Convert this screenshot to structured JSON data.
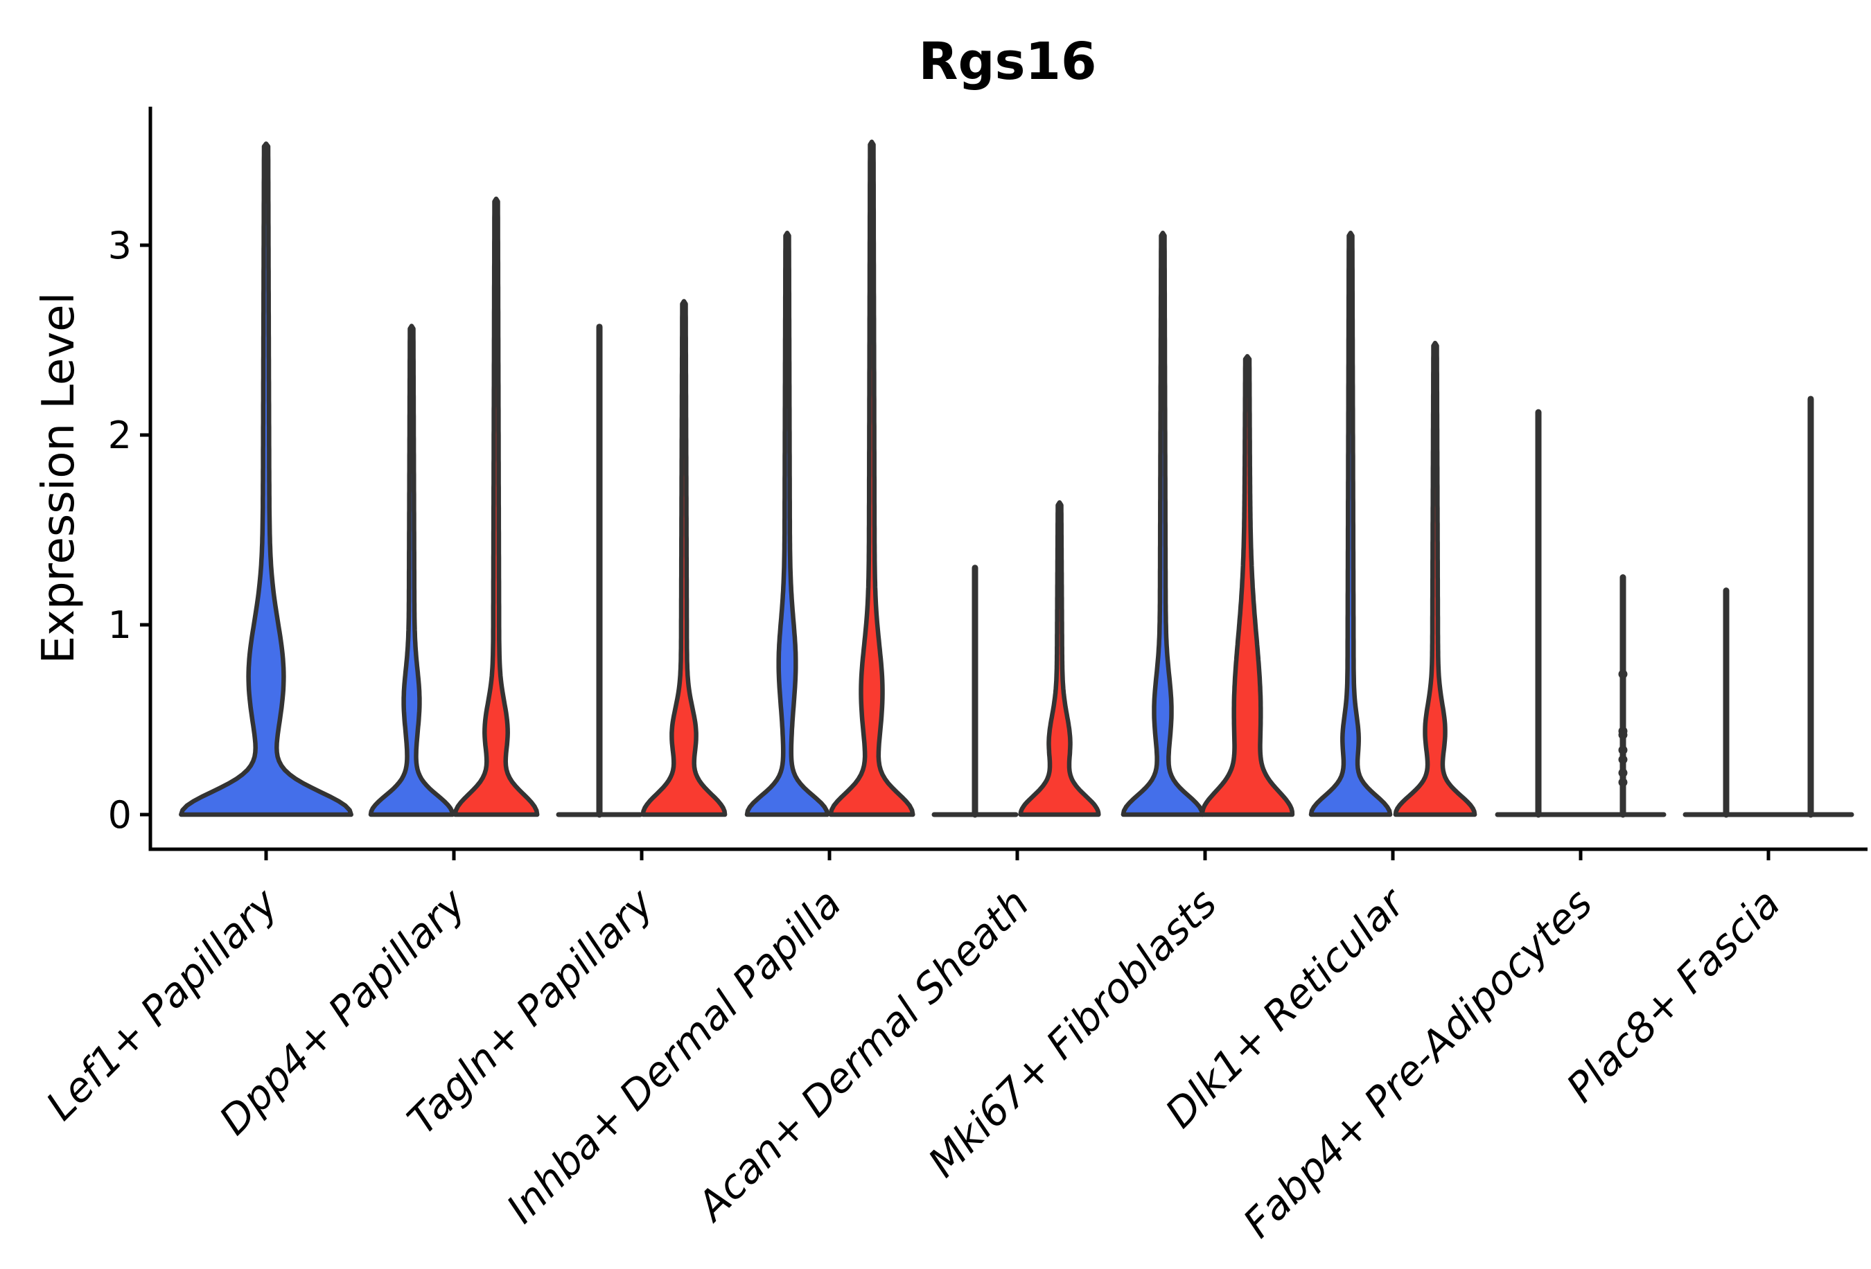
{
  "chart_data": {
    "type": "violin",
    "title": "Rgs16",
    "ylabel": "Expression Level",
    "xlabel": "",
    "yticks": [
      0,
      1,
      2,
      3
    ],
    "ylim": [
      0,
      3.8
    ],
    "grid": false,
    "legend": "none",
    "colors": {
      "blue": "#446FEA",
      "red": "#F93B30",
      "outline": "#333333",
      "axis": "#000000",
      "text": "#000000"
    },
    "categories": [
      {
        "label": "Lef1+ Papillary",
        "violins": [
          {
            "group": "blue",
            "style": "density",
            "max": 3.52,
            "dx": 0,
            "base_amp": 116,
            "base_sigma": 0.12,
            "bulge": {
              "amp": 20,
              "center": 0.73,
              "sigma": 0.28
            },
            "stem_w": 6
          }
        ]
      },
      {
        "label": "Dpp4+ Papillary",
        "violins": [
          {
            "group": "blue",
            "style": "density",
            "max": 2.56,
            "dx": -61,
            "base_amp": 54,
            "base_sigma": 0.1,
            "bulge": {
              "amp": 7,
              "center": 0.6,
              "sigma": 0.16
            },
            "stem_w": 5
          },
          {
            "group": "red",
            "style": "density",
            "max": 3.23,
            "dx": 61,
            "base_amp": 54,
            "base_sigma": 0.11,
            "bulge": {
              "amp": 12,
              "center": 0.44,
              "sigma": 0.15
            },
            "stem_w": 5
          }
        ]
      },
      {
        "label": "Tagln+ Papillary",
        "violins": [
          {
            "group": "blue",
            "style": "line",
            "max": 2.57,
            "dx": -61,
            "half_width": 59
          },
          {
            "group": "red",
            "style": "density",
            "max": 2.69,
            "dx": 61,
            "base_amp": 54,
            "base_sigma": 0.11,
            "bulge": {
              "amp": 13,
              "center": 0.42,
              "sigma": 0.14
            },
            "stem_w": 5
          }
        ]
      },
      {
        "label": "Inhba+ Dermal Papilla",
        "violins": [
          {
            "group": "blue",
            "style": "density",
            "max": 3.05,
            "dx": -61,
            "base_amp": 53,
            "base_sigma": 0.1,
            "bulge": {
              "amp": 8,
              "center": 0.8,
              "sigma": 0.22
            },
            "stem_w": 5
          },
          {
            "group": "red",
            "style": "density",
            "max": 3.53,
            "dx": 61,
            "base_amp": 54,
            "base_sigma": 0.11,
            "bulge": {
              "amp": 11,
              "center": 0.65,
              "sigma": 0.24
            },
            "stem_w": 5
          }
        ]
      },
      {
        "label": "Acan+ Dermal Sheath",
        "violins": [
          {
            "group": "blue",
            "style": "line",
            "max": 1.3,
            "dx": -61,
            "half_width": 59
          },
          {
            "group": "red",
            "style": "density",
            "max": 1.63,
            "dx": 61,
            "base_amp": 51,
            "base_sigma": 0.1,
            "bulge": {
              "amp": 11,
              "center": 0.38,
              "sigma": 0.14
            },
            "stem_w": 5
          }
        ]
      },
      {
        "label": "Mki67+ Fibroblasts",
        "violins": [
          {
            "group": "blue",
            "style": "density",
            "max": 3.05,
            "dx": -61,
            "base_amp": 52,
            "base_sigma": 0.1,
            "bulge": {
              "amp": 8,
              "center": 0.55,
              "sigma": 0.18
            },
            "stem_w": 5
          },
          {
            "group": "red",
            "style": "density",
            "max": 2.4,
            "dx": 61,
            "base_amp": 54,
            "base_sigma": 0.12,
            "bulge": {
              "amp": 14,
              "center": 0.55,
              "sigma": 0.38
            },
            "stem_w": 6
          }
        ]
      },
      {
        "label": "Dlk1+ Reticular",
        "violins": [
          {
            "group": "blue",
            "style": "density",
            "max": 3.05,
            "dx": -61,
            "base_amp": 52,
            "base_sigma": 0.1,
            "bulge": {
              "amp": 7,
              "center": 0.4,
              "sigma": 0.12
            },
            "stem_w": 5
          },
          {
            "group": "red",
            "style": "density",
            "max": 2.47,
            "dx": 61,
            "base_amp": 52,
            "base_sigma": 0.1,
            "bulge": {
              "amp": 10,
              "center": 0.44,
              "sigma": 0.14
            },
            "stem_w": 5
          }
        ]
      },
      {
        "label": "Fabp4+ Pre-Adipocytes",
        "base_line_full": true,
        "violins": [
          {
            "group": "blue",
            "style": "line",
            "max": 2.12,
            "dx": -61
          },
          {
            "group": "red",
            "style": "line",
            "max": 1.25,
            "dx": 61,
            "points": [
              0.74,
              0.44,
              0.42,
              0.34,
              0.29,
              0.22,
              0.17
            ]
          }
        ]
      },
      {
        "label": "Plac8+ Fascia",
        "base_line_full": true,
        "violins": [
          {
            "group": "blue",
            "style": "line",
            "max": 1.18,
            "dx": -61
          },
          {
            "group": "red",
            "style": "line",
            "max": 2.19,
            "dx": 61
          }
        ]
      }
    ]
  }
}
